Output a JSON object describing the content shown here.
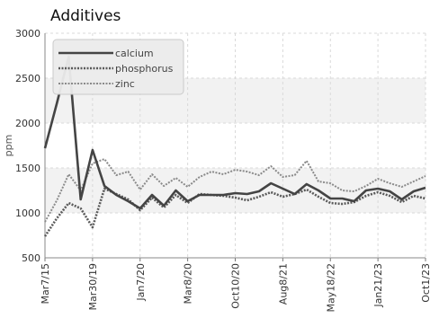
{
  "chart_data": {
    "type": "line",
    "title": "Additives",
    "ylabel": "ppm",
    "xlabel": "",
    "ylim": [
      500,
      3000
    ],
    "y_ticks": [
      "500",
      "1000",
      "1500",
      "2000",
      "2500",
      "3000"
    ],
    "x_tick_labels": [
      "Mar7/15",
      "Mar30/19",
      "Jan7/20",
      "Mar8/20",
      "Oct10/20",
      "Aug8/21",
      "May18/22",
      "Jan21/23",
      "Oct1/23"
    ],
    "x_tick_indices": [
      0,
      4,
      8,
      12,
      16,
      20,
      24,
      28,
      32
    ],
    "grid": true,
    "legend_position": "top-left",
    "series": [
      {
        "name": "calcium",
        "color": "#444444",
        "style": "solid",
        "values": [
          1720,
          2220,
          2740,
          1150,
          1700,
          1300,
          1200,
          1130,
          1050,
          1200,
          1080,
          1250,
          1130,
          1200,
          1200,
          1200,
          1220,
          1210,
          1240,
          1330,
          1270,
          1210,
          1320,
          1250,
          1160,
          1160,
          1130,
          1250,
          1270,
          1240,
          1150,
          1240,
          1280
        ]
      },
      {
        "name": "phosphorus",
        "color": "#5a5a5a",
        "style": "dashed",
        "values": [
          740,
          940,
          1110,
          1050,
          840,
          1270,
          1210,
          1150,
          1030,
          1170,
          1060,
          1200,
          1110,
          1210,
          1200,
          1190,
          1170,
          1140,
          1180,
          1230,
          1180,
          1210,
          1260,
          1180,
          1110,
          1100,
          1120,
          1190,
          1230,
          1190,
          1120,
          1190,
          1160
        ]
      },
      {
        "name": "zinc",
        "color": "#8a8a8a",
        "style": "dashed",
        "values": [
          900,
          1140,
          1430,
          1250,
          1550,
          1600,
          1420,
          1460,
          1260,
          1430,
          1300,
          1390,
          1290,
          1400,
          1460,
          1430,
          1480,
          1460,
          1420,
          1520,
          1400,
          1420,
          1580,
          1350,
          1330,
          1250,
          1240,
          1300,
          1380,
          1330,
          1290,
          1350,
          1410
        ]
      }
    ]
  }
}
